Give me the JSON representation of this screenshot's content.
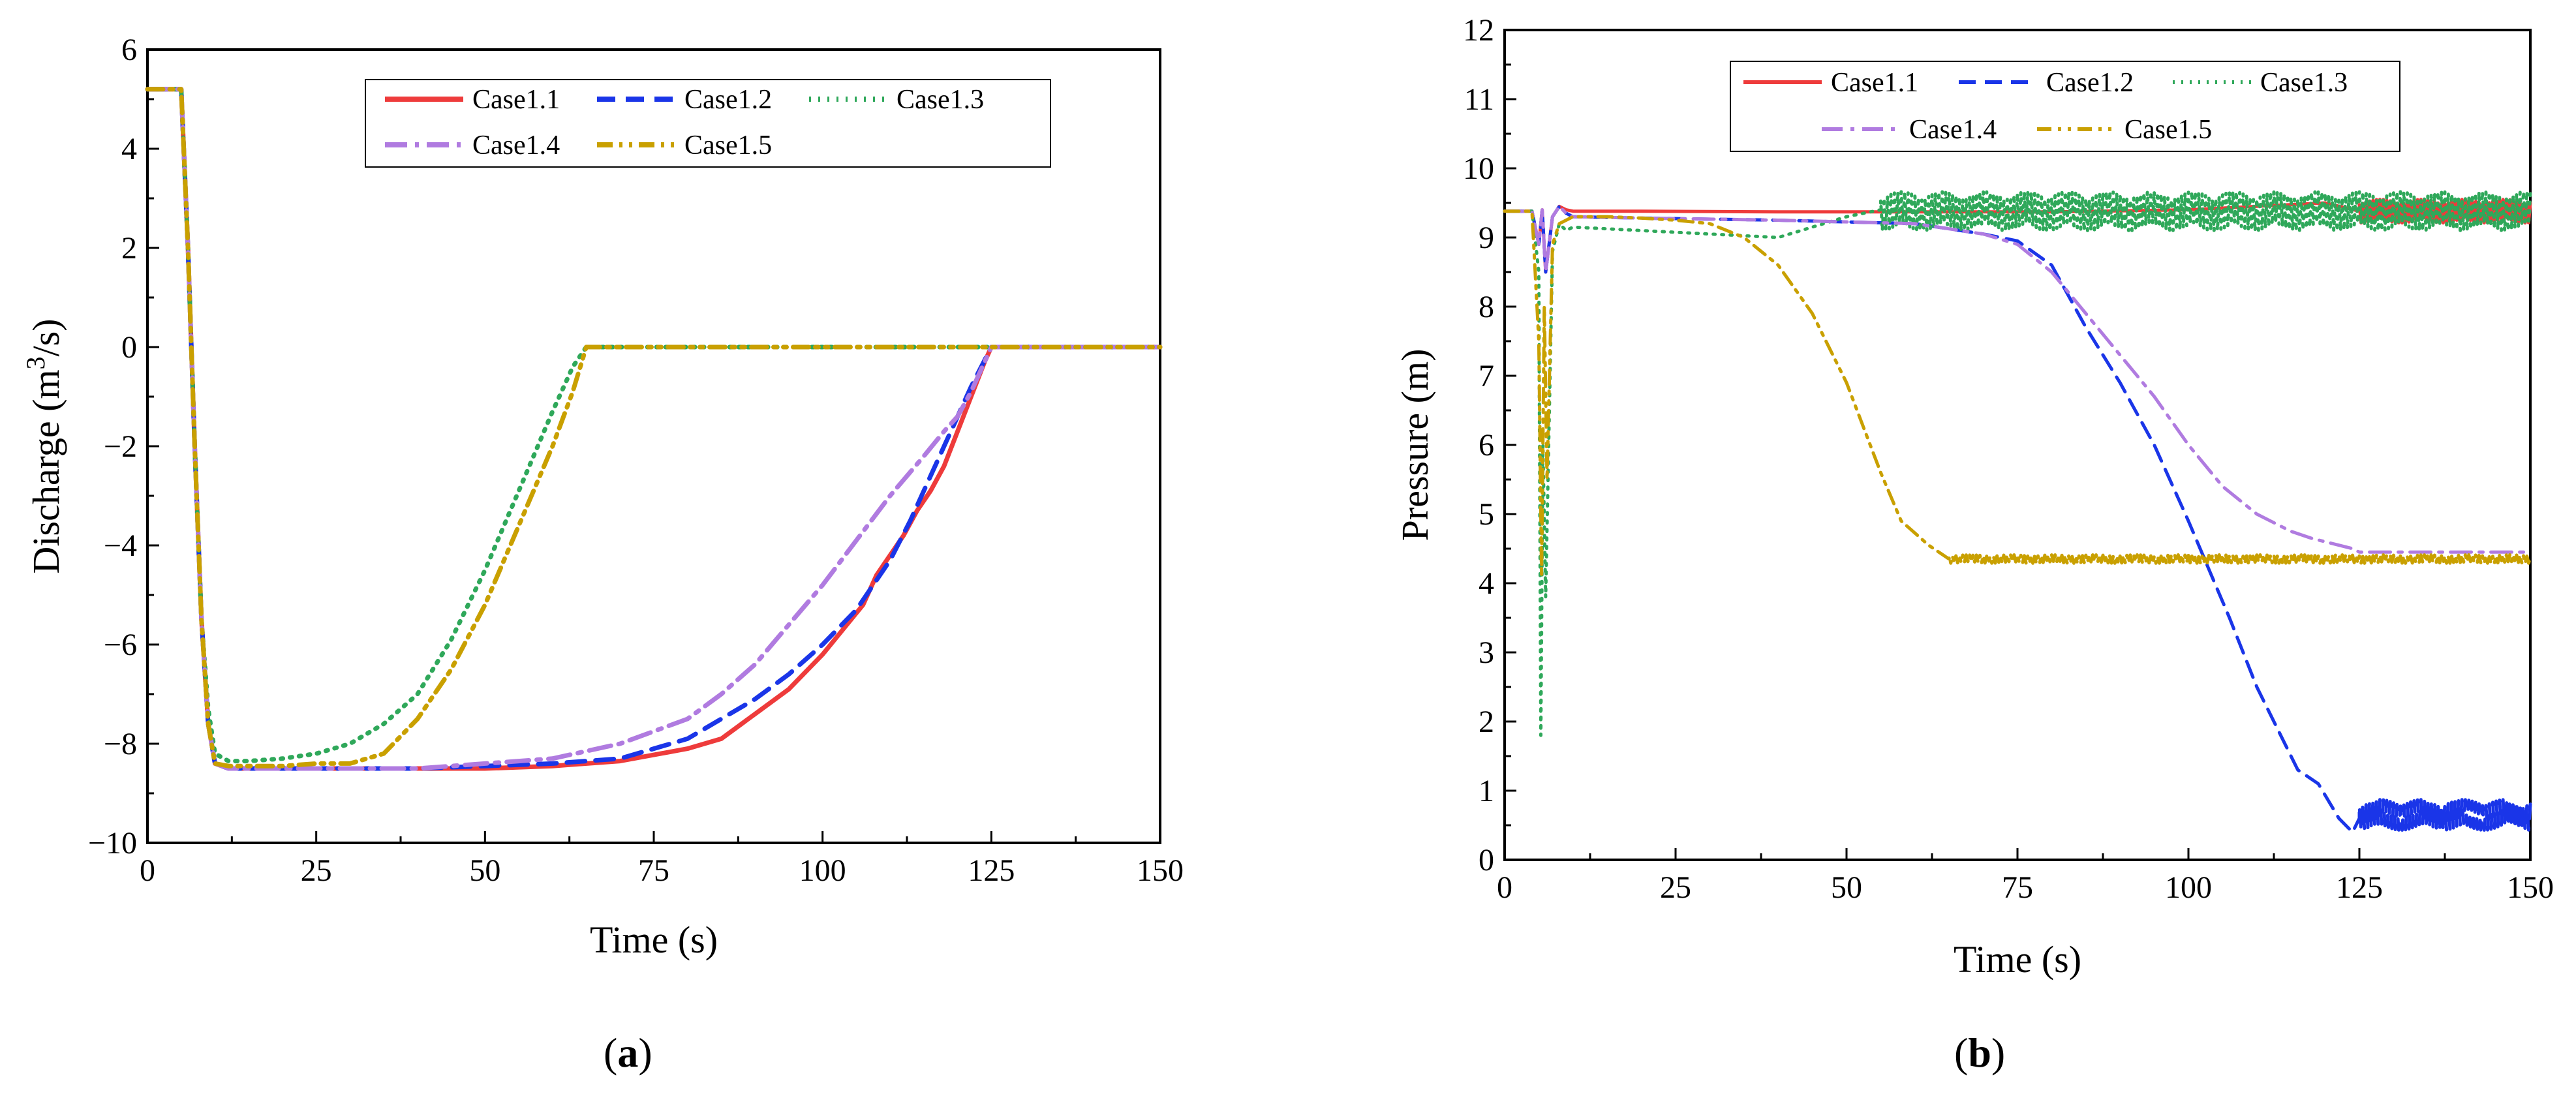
{
  "chart_data": [
    {
      "type": "line",
      "caption": "a",
      "xlabel": "Time (s)",
      "ylabel_main": "Discharge (m",
      "ylabel_sup": "3",
      "ylabel_end": "/s)",
      "xlim": [
        0,
        150
      ],
      "ylim": [
        -10,
        6
      ],
      "xticks": [
        "0",
        "25",
        "50",
        "75",
        "100",
        "125",
        "150"
      ],
      "yticks": [
        "−10",
        "−8",
        "−6",
        "−4",
        "−2",
        "0",
        "2",
        "4",
        "6"
      ],
      "legend_position": "top-right",
      "series": [
        {
          "name": "Case1.1",
          "color": "#ee3b3b",
          "dash": "",
          "x": [
            0,
            5,
            6,
            7,
            8,
            9,
            10,
            12,
            15,
            20,
            30,
            40,
            50,
            60,
            70,
            80,
            85,
            90,
            95,
            100,
            103,
            106,
            108,
            110,
            112,
            114,
            116,
            118,
            120,
            122,
            124,
            125,
            130,
            140,
            150
          ],
          "y": [
            5.2,
            5.2,
            2.0,
            -2.0,
            -5.5,
            -7.6,
            -8.4,
            -8.5,
            -8.5,
            -8.5,
            -8.5,
            -8.5,
            -8.5,
            -8.45,
            -8.35,
            -8.1,
            -7.9,
            -7.4,
            -6.9,
            -6.2,
            -5.7,
            -5.2,
            -4.6,
            -4.2,
            -3.8,
            -3.3,
            -2.9,
            -2.4,
            -1.7,
            -1.0,
            -0.3,
            0,
            0,
            0,
            0
          ]
        },
        {
          "name": "Case1.2",
          "color": "#1a35e8",
          "dash": "28,16",
          "x": [
            0,
            5,
            6,
            7,
            8,
            9,
            10,
            12,
            15,
            20,
            30,
            40,
            50,
            60,
            70,
            80,
            90,
            95,
            100,
            105,
            110,
            113,
            116,
            119,
            122,
            125,
            130,
            140,
            150
          ],
          "y": [
            5.2,
            5.2,
            2.0,
            -2.0,
            -5.5,
            -7.6,
            -8.4,
            -8.5,
            -8.5,
            -8.5,
            -8.5,
            -8.5,
            -8.45,
            -8.4,
            -8.3,
            -7.9,
            -7.1,
            -6.6,
            -6.0,
            -5.3,
            -4.3,
            -3.5,
            -2.6,
            -1.7,
            -0.8,
            0,
            0,
            0,
            0
          ]
        },
        {
          "name": "Case1.3",
          "color": "#2fa85a",
          "dash": "3,11",
          "x": [
            0,
            5,
            6,
            7,
            8,
            9,
            10,
            12,
            15,
            20,
            25,
            30,
            35,
            40,
            45,
            50,
            55,
            60,
            63,
            65,
            70,
            80,
            100,
            125,
            150
          ],
          "y": [
            5.2,
            5.2,
            2.0,
            -2.0,
            -5.5,
            -7.3,
            -8.2,
            -8.35,
            -8.35,
            -8.3,
            -8.2,
            -8.0,
            -7.6,
            -7.0,
            -5.9,
            -4.5,
            -2.9,
            -1.3,
            -0.4,
            0,
            0,
            0,
            0,
            0,
            0
          ]
        },
        {
          "name": "Case1.4",
          "color": "#b07be0",
          "dash": "34,12,6,12",
          "x": [
            0,
            5,
            6,
            7,
            8,
            9,
            10,
            12,
            15,
            20,
            30,
            40,
            50,
            60,
            70,
            80,
            85,
            90,
            95,
            100,
            105,
            110,
            115,
            118,
            120,
            122,
            125,
            130,
            140,
            150
          ],
          "y": [
            5.2,
            5.2,
            2.0,
            -2.0,
            -5.5,
            -7.6,
            -8.4,
            -8.5,
            -8.5,
            -8.5,
            -8.5,
            -8.5,
            -8.4,
            -8.3,
            -8.0,
            -7.5,
            -7.0,
            -6.4,
            -5.6,
            -4.8,
            -3.9,
            -3.0,
            -2.2,
            -1.7,
            -1.4,
            -0.9,
            0,
            0,
            0,
            0
          ]
        },
        {
          "name": "Case1.5",
          "color": "#c9a000",
          "dash": "24,10,5,10,5,10",
          "x": [
            0,
            5,
            6,
            7,
            8,
            9,
            10,
            12,
            15,
            20,
            25,
            30,
            35,
            40,
            45,
            50,
            55,
            60,
            63,
            65,
            70,
            80,
            100,
            125,
            150
          ],
          "y": [
            5.2,
            5.2,
            2.0,
            -2.0,
            -5.5,
            -7.6,
            -8.4,
            -8.45,
            -8.45,
            -8.45,
            -8.4,
            -8.4,
            -8.2,
            -7.5,
            -6.5,
            -5.2,
            -3.6,
            -2.0,
            -0.9,
            0,
            0,
            0,
            0,
            0,
            0
          ]
        }
      ]
    },
    {
      "type": "line",
      "caption": "b",
      "xlabel": "Time (s)",
      "ylabel": "Pressure (m)",
      "xlim": [
        0,
        150
      ],
      "ylim": [
        0,
        12
      ],
      "xticks": [
        "0",
        "25",
        "50",
        "75",
        "100",
        "125",
        "150"
      ],
      "yticks": [
        "0",
        "1",
        "2",
        "3",
        "4",
        "5",
        "6",
        "7",
        "8",
        "9",
        "10",
        "11",
        "12"
      ],
      "legend_position": "top-right",
      "series": [
        {
          "name": "Case1.1",
          "color": "#ee3b3b",
          "dash": "",
          "x": [
            0,
            4,
            5,
            5.5,
            6,
            7,
            8,
            9,
            10,
            20,
            40,
            60,
            80,
            100,
            110,
            120,
            125,
            150
          ],
          "y": [
            9.38,
            9.38,
            8.9,
            9.4,
            8.5,
            9.3,
            9.45,
            9.4,
            9.38,
            9.38,
            9.37,
            9.37,
            9.37,
            9.4,
            9.45,
            9.5,
            9.38,
            9.38
          ],
          "noise": {
            "from": 125,
            "to": 150,
            "center": 9.38,
            "amp": 0.17
          }
        },
        {
          "name": "Case1.2",
          "color": "#1a35e8",
          "dash": "26,14",
          "x": [
            0,
            4,
            5,
            5.5,
            6,
            7,
            8,
            9,
            10,
            20,
            40,
            60,
            70,
            75,
            80,
            85,
            90,
            95,
            100,
            103,
            106,
            110,
            113,
            116,
            119,
            122,
            124,
            125,
            150
          ],
          "y": [
            9.38,
            9.38,
            8.9,
            9.4,
            8.5,
            9.3,
            9.45,
            9.35,
            9.3,
            9.28,
            9.25,
            9.2,
            9.05,
            8.95,
            8.6,
            7.7,
            6.9,
            6.0,
            4.9,
            4.2,
            3.5,
            2.5,
            1.9,
            1.3,
            1.1,
            0.6,
            0.4,
            0.6,
            0.65
          ],
          "noise": {
            "from": 125,
            "to": 150,
            "center": 0.65,
            "amp": 0.22
          }
        },
        {
          "name": "Case1.3",
          "color": "#2fa85a",
          "dash": "3,10",
          "x": [
            0,
            4,
            5,
            5.3,
            5.6,
            6,
            7,
            8,
            9,
            10,
            20,
            30,
            40,
            50,
            55,
            60,
            65,
            150
          ],
          "y": [
            9.38,
            9.38,
            8.5,
            1.8,
            6.0,
            3.8,
            8.8,
            9.2,
            9.1,
            9.15,
            9.1,
            9.05,
            9.0,
            9.3,
            9.4,
            9.45,
            9.38,
            9.38
          ],
          "noise": {
            "from": 55,
            "to": 150,
            "center": 9.38,
            "amp": 0.28
          }
        },
        {
          "name": "Case1.4",
          "color": "#b07be0",
          "dash": "32,12,6,12",
          "x": [
            0,
            4,
            5,
            5.5,
            6,
            7,
            8,
            9,
            10,
            20,
            40,
            60,
            70,
            75,
            80,
            85,
            90,
            95,
            100,
            105,
            110,
            115,
            118,
            120,
            122,
            124,
            125,
            150
          ],
          "y": [
            9.38,
            9.38,
            8.9,
            9.4,
            8.5,
            9.3,
            9.45,
            9.35,
            9.3,
            9.28,
            9.25,
            9.2,
            9.05,
            8.9,
            8.5,
            7.9,
            7.3,
            6.7,
            6.0,
            5.4,
            5.0,
            4.75,
            4.65,
            4.6,
            4.55,
            4.5,
            4.45,
            4.45
          ],
          "noise": null
        },
        {
          "name": "Case1.5",
          "color": "#c9a000",
          "dash": "22,10,5,10,5,10",
          "x": [
            0,
            4,
            5,
            5.4,
            5.8,
            6.2,
            7,
            8,
            9,
            10,
            15,
            20,
            25,
            30,
            35,
            40,
            45,
            50,
            55,
            58,
            62,
            65,
            150
          ],
          "y": [
            9.38,
            9.38,
            7.5,
            4.1,
            8.0,
            5.5,
            8.9,
            9.2,
            9.25,
            9.3,
            9.3,
            9.28,
            9.25,
            9.2,
            9.0,
            8.6,
            7.9,
            6.9,
            5.6,
            4.9,
            4.55,
            4.35,
            4.35
          ],
          "noise": {
            "from": 65,
            "to": 150,
            "center": 4.35,
            "amp": 0.06
          }
        }
      ]
    }
  ]
}
